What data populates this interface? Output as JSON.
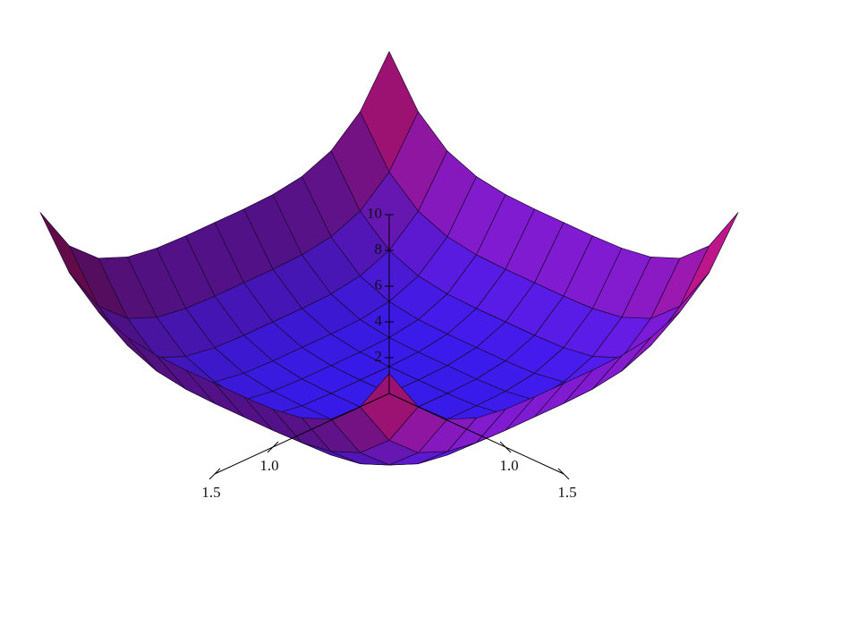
{
  "chart_data": {
    "type": "surface",
    "x": [
      -1.5,
      -1.25,
      -1,
      -0.75,
      -0.5,
      -0.25,
      0,
      0.25,
      0.5,
      0.75,
      1,
      1.25,
      1.5
    ],
    "y": [
      -1.5,
      -1.25,
      -1,
      -0.75,
      -0.5,
      -0.25,
      0,
      0.25,
      0.5,
      0.75,
      1,
      1.25,
      1.5
    ],
    "z": [
      [
        10.12,
        7.5,
        6.06,
        5.38,
        5.12,
        5.06,
        5.06,
        5.06,
        5.12,
        5.38,
        6.06,
        7.5,
        10.12
      ],
      [
        7.5,
        4.88,
        3.44,
        2.76,
        2.5,
        2.44,
        2.44,
        2.44,
        2.5,
        2.76,
        3.44,
        4.88,
        7.5
      ],
      [
        6.06,
        3.44,
        2,
        1.32,
        1.06,
        1,
        1,
        1,
        1.06,
        1.32,
        2,
        3.44,
        6.06
      ],
      [
        5.38,
        2.76,
        1.32,
        0.64,
        0.38,
        0.32,
        0.32,
        0.32,
        0.38,
        0.64,
        1.32,
        2.76,
        5.38
      ],
      [
        5.12,
        2.5,
        1.06,
        0.38,
        0.12,
        0.06,
        0.06,
        0.06,
        0.12,
        0.38,
        1.06,
        2.5,
        5.12
      ],
      [
        5.06,
        2.44,
        1,
        0.32,
        0.06,
        0,
        0,
        0,
        0.06,
        0.32,
        1,
        2.44,
        5.06
      ],
      [
        5.06,
        2.44,
        1,
        0.32,
        0.06,
        0,
        0,
        0,
        0.06,
        0.32,
        1,
        2.44,
        5.06
      ],
      [
        5.06,
        2.44,
        1,
        0.32,
        0.06,
        0,
        0,
        0,
        0.06,
        0.32,
        1,
        2.44,
        5.06
      ],
      [
        5.12,
        2.5,
        1.06,
        0.38,
        0.12,
        0.06,
        0.06,
        0.06,
        0.12,
        0.38,
        1.06,
        2.5,
        5.12
      ],
      [
        5.38,
        2.76,
        1.32,
        0.64,
        0.38,
        0.32,
        0.32,
        0.32,
        0.38,
        0.64,
        1.32,
        2.76,
        5.38
      ],
      [
        6.06,
        3.44,
        2,
        1.32,
        1.06,
        1,
        1,
        1,
        1.06,
        1.32,
        2,
        3.44,
        6.06
      ],
      [
        7.5,
        4.88,
        3.44,
        2.76,
        2.5,
        2.44,
        2.44,
        2.44,
        2.5,
        2.76,
        3.44,
        4.88,
        7.5
      ],
      [
        10.12,
        7.5,
        6.06,
        5.38,
        5.12,
        5.06,
        5.06,
        5.06,
        5.12,
        5.38,
        6.06,
        7.5,
        10.12
      ]
    ],
    "xticks": [
      {
        "value": 1,
        "label": "1.0"
      },
      {
        "value": 1.5,
        "label": "1.5"
      }
    ],
    "yticks": [
      {
        "value": 1,
        "label": "1.0"
      },
      {
        "value": 1.5,
        "label": "1.5"
      }
    ],
    "zlim": [
      0,
      10
    ],
    "zticks": [
      2,
      4,
      6,
      8,
      10
    ],
    "colorscale": [
      "#3a1cf5",
      "#c8104e"
    ]
  }
}
